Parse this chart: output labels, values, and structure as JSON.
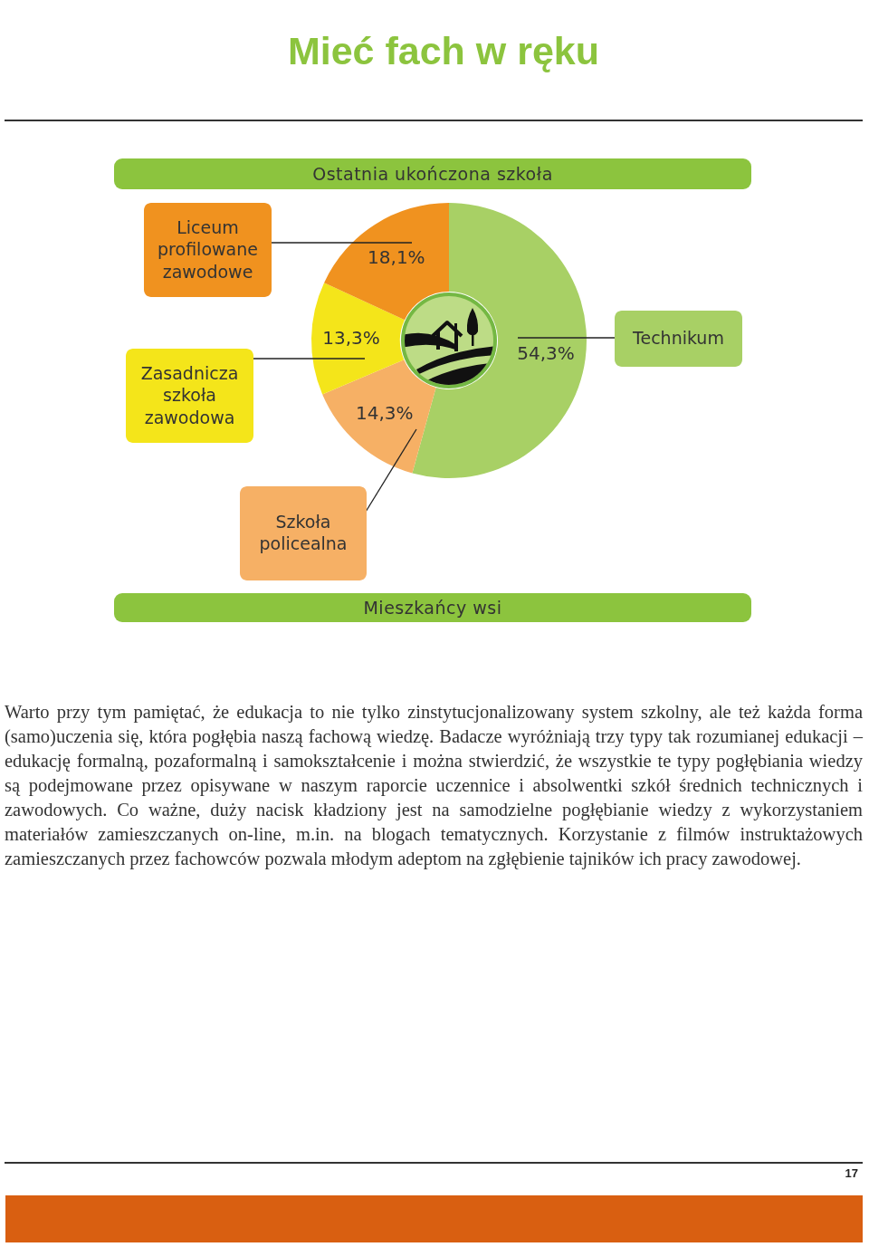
{
  "chart_data": {
    "type": "donut",
    "title": "Ostatnia ukończona szkoła",
    "subtitle": "Mieszkańcy wsi",
    "categories": [
      "Technikum",
      "Szkoła policealna",
      "Zasadnicza szkoła zawodowa",
      "Liceum profilowane zawodowe"
    ],
    "values": [
      54.3,
      14.3,
      13.3,
      18.1
    ],
    "colors": [
      "#a8d065",
      "#f6b065",
      "#f4e51a",
      "#f0921f"
    ],
    "value_labels": [
      "54,3%",
      "14,3%",
      "13,3%",
      "18,1%"
    ],
    "annotations": [
      "Mieć fach w ręku",
      "Warto przy tym pamiętać, że edukacja to nie tylko zinstytucjonalizowany system szkolny, ale też każda forma (samo)uczenia się, która pogłębia naszą fachową wiedzę. Badacze wyróżniają trzy typy tak rozumianej edukacji – edukację formalną, pozaformalną i samokształcenie i można stwierdzić, że wszystkie te typy pogłębiania wiedzy są podejmowane przez opisywane w naszym raporcie uczennice i absolwentki szkół średnich technicznych i zawodowych. Co ważne, duży nacisk kładziony jest na samodzielne pogłębianie wiedzy z wykorzystaniem materiałów zamieszczanych on-line, m.in. na blogach tematycznych. Korzystanie z filmów instruktażowych zamieszczanych przez fachowców pozwala młodym adeptom na zgłębienie tajników ich pracy zawodowej.",
      "17"
    ]
  }
}
